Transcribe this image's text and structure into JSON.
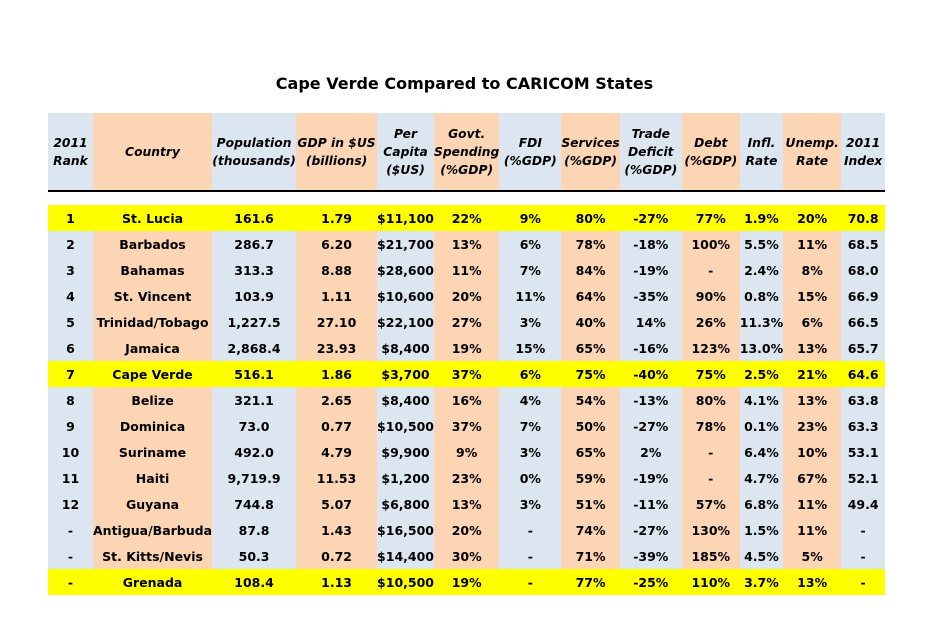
{
  "title": "Cape Verde Compared to CARICOM States",
  "columns": [
    "2011 Rank",
    "Country",
    "Population (thousands)",
    "GDP in $US (billions)",
    "Per Capita ($US)",
    "Govt. Spending (%GDP)",
    "FDI (%GDP)",
    "Services (%GDP)",
    "Trade Deficit (%GDP)",
    "Debt (%GDP)",
    "Infl. Rate",
    "Unemp. Rate",
    "2011 Index"
  ],
  "column_lines": [
    [
      "2011",
      "Rank"
    ],
    [
      "Country"
    ],
    [
      "Population",
      "(thousands)"
    ],
    [
      "GDP in $US",
      "(billions)"
    ],
    [
      "Per",
      "Capita",
      "($US)"
    ],
    [
      "Govt.",
      "Spending",
      "(%GDP)"
    ],
    [
      "FDI",
      "(%GDP)"
    ],
    [
      "Services",
      "(%GDP)"
    ],
    [
      "Trade",
      "Deficit",
      "(%GDP)"
    ],
    [
      "Debt",
      "(%GDP)"
    ],
    [
      "Infl.",
      "Rate"
    ],
    [
      "Unemp.",
      "Rate"
    ],
    [
      "2011",
      "Index"
    ]
  ],
  "rows": [
    [
      "1",
      "St. Lucia",
      "161.6",
      "1.79",
      "$11,100",
      "22%",
      "9%",
      "80%",
      "-27%",
      "77%",
      "1.9%",
      "20%",
      "70.8"
    ],
    [
      "2",
      "Barbados",
      "286.7",
      "6.20",
      "$21,700",
      "13%",
      "6%",
      "78%",
      "-18%",
      "100%",
      "5.5%",
      "11%",
      "68.5"
    ],
    [
      "3",
      "Bahamas",
      "313.3",
      "8.88",
      "$28,600",
      "11%",
      "7%",
      "84%",
      "-19%",
      "-",
      "2.4%",
      "8%",
      "68.0"
    ],
    [
      "4",
      "St. Vincent",
      "103.9",
      "1.11",
      "$10,600",
      "20%",
      "11%",
      "64%",
      "-35%",
      "90%",
      "0.8%",
      "15%",
      "66.9"
    ],
    [
      "5",
      "Trinidad/Tobago",
      "1,227.5",
      "27.10",
      "$22,100",
      "27%",
      "3%",
      "40%",
      "14%",
      "26%",
      "11.3%",
      "6%",
      "66.5"
    ],
    [
      "6",
      "Jamaica",
      "2,868.4",
      "23.93",
      "$8,400",
      "19%",
      "15%",
      "65%",
      "-16%",
      "123%",
      "13.0%",
      "13%",
      "65.7"
    ],
    [
      "7",
      "Cape Verde",
      "516.1",
      "1.86",
      "$3,700",
      "37%",
      "6%",
      "75%",
      "-40%",
      "75%",
      "2.5%",
      "21%",
      "64.6"
    ],
    [
      "8",
      "Belize",
      "321.1",
      "2.65",
      "$8,400",
      "16%",
      "4%",
      "54%",
      "-13%",
      "80%",
      "4.1%",
      "13%",
      "63.8"
    ],
    [
      "9",
      "Dominica",
      "73.0",
      "0.77",
      "$10,500",
      "37%",
      "7%",
      "50%",
      "-27%",
      "78%",
      "0.1%",
      "23%",
      "63.3"
    ],
    [
      "10",
      "Suriname",
      "492.0",
      "4.79",
      "$9,900",
      "9%",
      "3%",
      "65%",
      "2%",
      "-",
      "6.4%",
      "10%",
      "53.1"
    ],
    [
      "11",
      "Haiti",
      "9,719.9",
      "11.53",
      "$1,200",
      "23%",
      "0%",
      "59%",
      "-19%",
      "-",
      "4.7%",
      "67%",
      "52.1"
    ],
    [
      "12",
      "Guyana",
      "744.8",
      "5.07",
      "$6,800",
      "13%",
      "3%",
      "51%",
      "-11%",
      "57%",
      "6.8%",
      "11%",
      "49.4"
    ],
    [
      "-",
      "Antigua/Barbuda",
      "87.8",
      "1.43",
      "$16,500",
      "20%",
      "-",
      "74%",
      "-27%",
      "130%",
      "1.5%",
      "11%",
      "-"
    ],
    [
      "-",
      "St. Kitts/Nevis",
      "50.3",
      "0.72",
      "$14,400",
      "30%",
      "-",
      "71%",
      "-39%",
      "185%",
      "4.5%",
      "5%",
      "-"
    ],
    [
      "-",
      "Grenada",
      "108.4",
      "1.13",
      "$10,500",
      "19%",
      "-",
      "77%",
      "-25%",
      "110%",
      "3.7%",
      "13%",
      "-"
    ]
  ],
  "highlighted_rows": [
    "St. Lucia",
    "Cape Verde",
    "Grenada"
  ],
  "colors": {
    "highlight": "#ffff00",
    "column_blue": "#dce6f1",
    "column_tan": "#fcd5b4"
  }
}
